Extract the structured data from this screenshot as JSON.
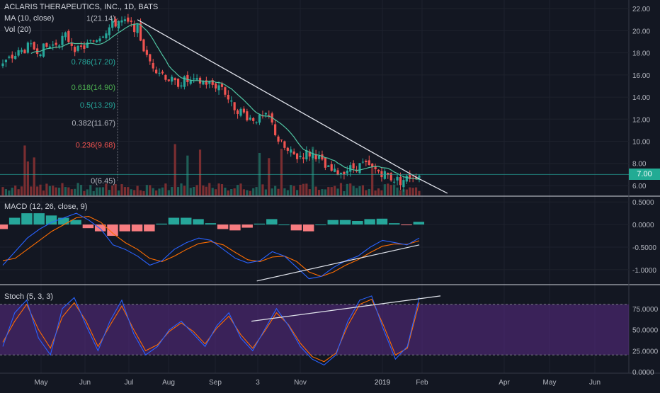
{
  "legend": {
    "symbol": "ACLARIS THERAPEUTICS, INC., 1D, BATS",
    "ma": "MA (10, close)",
    "vol": "Vol (20)",
    "macd": "MACD (12, 26, close, 9)",
    "stoch": "Stoch (5, 3, 3)"
  },
  "last_price_label": "7.00",
  "colors": {
    "background": "#131722",
    "up": "#26a69a",
    "down": "#ef5350",
    "ma": "#4fc3a1",
    "grid": "#1e222d",
    "axis_text": "#b2b5be",
    "macd_line": "#2962ff",
    "signal_line": "#ff6d00",
    "stoch_k": "#2962ff",
    "stoch_d": "#ff6d00",
    "stoch_band": "#5b2c86",
    "trendline": "#e0e3eb"
  },
  "chart_data": [
    {
      "type": "candlestick",
      "title": "ACLARIS THERAPEUTICS, INC., 1D, BATS",
      "y_ticks": [
        "22.00",
        "20.00",
        "18.00",
        "16.00",
        "14.00",
        "12.00",
        "10.00",
        "8.00",
        "6.00"
      ],
      "ylim": [
        5.1,
        22.4
      ],
      "x_ticks": [
        "May",
        "Jun",
        "Jul",
        "Aug",
        "Sep",
        "3",
        "Nov",
        "2019",
        "Feb",
        "Apr",
        "May",
        "Jun"
      ],
      "close_path": [
        {
          "x": 0,
          "y": 17.0
        },
        {
          "x": 4,
          "y": 17.8
        },
        {
          "x": 8,
          "y": 18.5
        },
        {
          "x": 12,
          "y": 18.3
        },
        {
          "x": 16,
          "y": 18.7
        },
        {
          "x": 20,
          "y": 19.5
        },
        {
          "x": 24,
          "y": 18.2
        },
        {
          "x": 28,
          "y": 18.9
        },
        {
          "x": 31,
          "y": 19.6
        },
        {
          "x": 34,
          "y": 20.3
        },
        {
          "x": 37,
          "y": 20.9
        },
        {
          "x": 40,
          "y": 20.6
        },
        {
          "x": 43,
          "y": 20.2
        },
        {
          "x": 46,
          "y": 17.5
        },
        {
          "x": 49,
          "y": 16.6
        },
        {
          "x": 52,
          "y": 15.9
        },
        {
          "x": 55,
          "y": 15.2
        },
        {
          "x": 58,
          "y": 15.5
        },
        {
          "x": 61,
          "y": 15.3
        },
        {
          "x": 64,
          "y": 15.4
        },
        {
          "x": 67,
          "y": 15.1
        },
        {
          "x": 70,
          "y": 15.0
        },
        {
          "x": 73,
          "y": 13.3
        },
        {
          "x": 76,
          "y": 12.7
        },
        {
          "x": 79,
          "y": 12.1
        },
        {
          "x": 82,
          "y": 12.0
        },
        {
          "x": 85,
          "y": 12.2
        },
        {
          "x": 88,
          "y": 10.1
        },
        {
          "x": 91,
          "y": 9.0
        },
        {
          "x": 94,
          "y": 8.6
        },
        {
          "x": 97,
          "y": 8.9
        },
        {
          "x": 100,
          "y": 8.8
        },
        {
          "x": 103,
          "y": 7.6
        },
        {
          "x": 106,
          "y": 7.1
        },
        {
          "x": 109,
          "y": 7.4
        },
        {
          "x": 112,
          "y": 7.6
        },
        {
          "x": 115,
          "y": 7.9
        },
        {
          "x": 118,
          "y": 7.5
        },
        {
          "x": 121,
          "y": 7.2
        },
        {
          "x": 124,
          "y": 6.7
        },
        {
          "x": 127,
          "y": 6.4
        },
        {
          "x": 130,
          "y": 6.8
        },
        {
          "x": 133,
          "y": 7.0
        }
      ],
      "ma_period": 10,
      "last_price": 7.0,
      "fibonacci": [
        {
          "label": "1(21.14)",
          "value": 21.14,
          "color": "#b2b5be"
        },
        {
          "label": "0.786(17.20)",
          "value": 17.2,
          "color": "#26a69a"
        },
        {
          "label": "0.618(14.90)",
          "value": 14.9,
          "color": "#4caf50"
        },
        {
          "label": "0.5(13.29)",
          "value": 13.29,
          "color": "#26a69a"
        },
        {
          "label": "0.382(11.67)",
          "value": 11.67,
          "color": "#b2b5be"
        },
        {
          "label": "0.236(9.68)",
          "value": 9.68,
          "color": "#ef5350"
        },
        {
          "label": "0(6.45)",
          "value": 6.45,
          "color": "#b2b5be"
        }
      ],
      "trendline": [
        {
          "x": 43,
          "y": 21.0
        },
        {
          "x": 133,
          "y": 6.6
        },
        {
          "x": 142,
          "y": 5.3
        }
      ]
    },
    {
      "type": "line",
      "title": "MACD (12, 26, close, 9)",
      "y_ticks": [
        "0.5000",
        "0.0000",
        "-0.5000",
        "-1.0000"
      ],
      "ylim": [
        -1.3,
        0.55
      ],
      "series": [
        {
          "name": "macd",
          "values": [
            -0.9,
            -0.6,
            -0.3,
            -0.1,
            0.05,
            0.15,
            0.25,
            0.1,
            -0.1,
            -0.45,
            -0.55,
            -0.7,
            -0.9,
            -0.8,
            -0.55,
            -0.4,
            -0.3,
            -0.35,
            -0.55,
            -0.75,
            -0.85,
            -0.8,
            -0.6,
            -0.7,
            -0.95,
            -1.2,
            -1.15,
            -0.95,
            -0.8,
            -0.7,
            -0.5,
            -0.35,
            -0.4,
            -0.45,
            -0.3
          ]
        },
        {
          "name": "signal",
          "values": [
            -0.8,
            -0.75,
            -0.55,
            -0.35,
            -0.15,
            0.0,
            0.15,
            0.18,
            0.05,
            -0.2,
            -0.4,
            -0.55,
            -0.75,
            -0.82,
            -0.7,
            -0.55,
            -0.42,
            -0.38,
            -0.45,
            -0.62,
            -0.78,
            -0.82,
            -0.72,
            -0.7,
            -0.82,
            -1.05,
            -1.15,
            -1.05,
            -0.9,
            -0.78,
            -0.62,
            -0.48,
            -0.43,
            -0.44,
            -0.36
          ]
        }
      ],
      "histogram": [
        -0.1,
        0.15,
        0.25,
        0.25,
        0.2,
        0.15,
        0.1,
        -0.08,
        -0.15,
        -0.25,
        -0.15,
        -0.15,
        -0.15,
        0.02,
        0.15,
        0.15,
        0.12,
        0.03,
        -0.1,
        -0.13,
        -0.07,
        0.02,
        0.12,
        0.0,
        -0.13,
        -0.15,
        0.0,
        0.1,
        0.1,
        0.08,
        0.12,
        0.13,
        0.03,
        -0.01,
        0.06
      ],
      "trendline": [
        {
          "x": 0.61,
          "y": -1.25
        },
        {
          "x": 0.99,
          "y": -0.45
        }
      ]
    },
    {
      "type": "line",
      "title": "Stoch (5, 3, 3)",
      "y_ticks": [
        "75.0000",
        "50.0000",
        "25.0000",
        "0.0000"
      ],
      "ylim": [
        0,
        100
      ],
      "band": [
        20,
        80
      ],
      "series": [
        {
          "name": "k",
          "values": [
            30,
            70,
            85,
            40,
            20,
            75,
            88,
            55,
            25,
            60,
            85,
            45,
            20,
            30,
            50,
            60,
            45,
            30,
            55,
            70,
            40,
            25,
            50,
            75,
            55,
            30,
            15,
            8,
            20,
            60,
            85,
            90,
            50,
            15,
            30,
            88
          ]
        },
        {
          "name": "d",
          "values": [
            35,
            60,
            80,
            50,
            28,
            65,
            82,
            60,
            30,
            55,
            78,
            50,
            25,
            32,
            48,
            58,
            48,
            33,
            52,
            66,
            44,
            28,
            48,
            70,
            56,
            34,
            18,
            12,
            22,
            55,
            80,
            86,
            55,
            20,
            28,
            82
          ]
        }
      ],
      "trendline": [
        {
          "x": 0.24,
          "y": 60
        },
        {
          "x": 0.99,
          "y": 90
        }
      ]
    }
  ]
}
